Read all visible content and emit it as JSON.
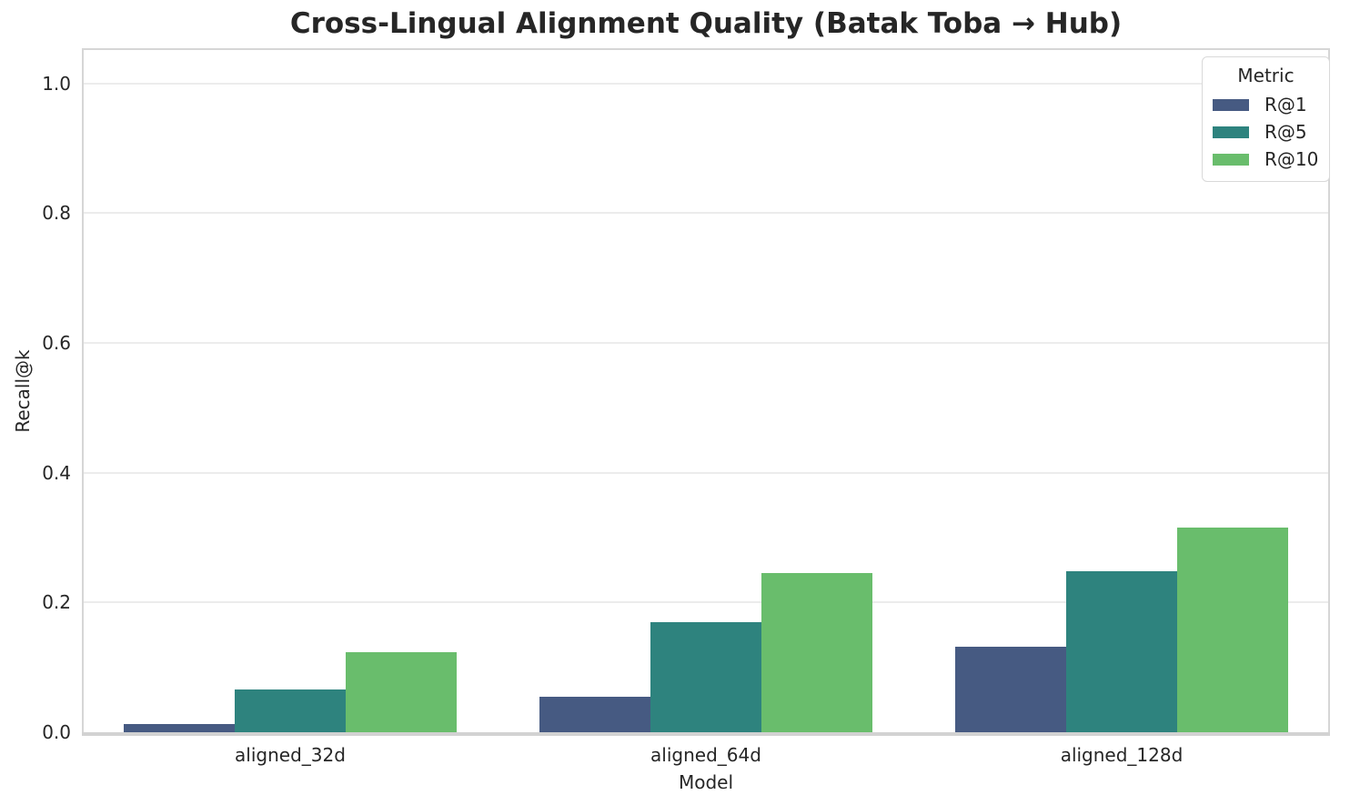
{
  "chart_data": {
    "type": "bar",
    "title": "Cross-Lingual Alignment Quality (Batak Toba → Hub)",
    "xlabel": "Model",
    "ylabel": "Recall@k",
    "categories": [
      "aligned_32d",
      "aligned_64d",
      "aligned_128d"
    ],
    "series": [
      {
        "name": "R@1",
        "color": "#465a82",
        "values": [
          0.012,
          0.054,
          0.132
        ]
      },
      {
        "name": "R@5",
        "color": "#2e837e",
        "values": [
          0.066,
          0.17,
          0.248
        ]
      },
      {
        "name": "R@10",
        "color": "#69bd6c",
        "values": [
          0.123,
          0.245,
          0.316
        ]
      }
    ],
    "legend": {
      "title": "Metric",
      "position": "upper-right"
    },
    "ylim": [
      0,
      1.054
    ],
    "yticks": [
      {
        "v": 0.0,
        "label": "0.0"
      },
      {
        "v": 0.2,
        "label": "0.2"
      },
      {
        "v": 0.4,
        "label": "0.4"
      },
      {
        "v": 0.6,
        "label": "0.6"
      },
      {
        "v": 0.8,
        "label": "0.8"
      },
      {
        "v": 1.0,
        "label": "1.0"
      }
    ],
    "grid": "horizontal",
    "style": {
      "background": "#ffffff",
      "grid_color": "#ececec",
      "spine_color": "#d6d6d6",
      "text_color": "#262626"
    }
  }
}
